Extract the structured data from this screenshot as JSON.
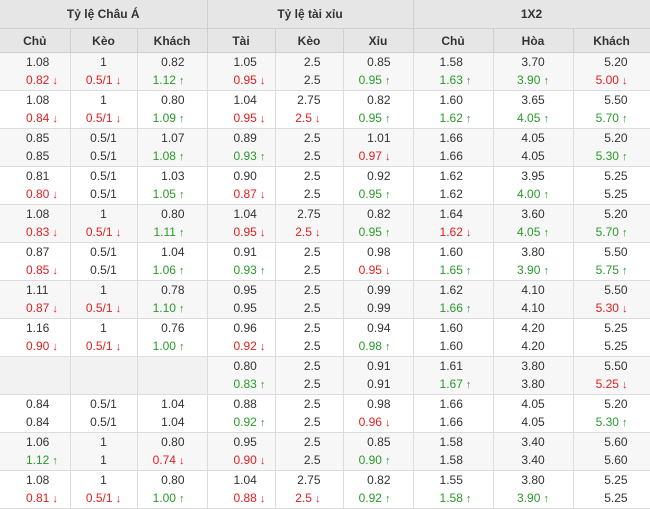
{
  "header": {
    "group_asian": "Tỷ lệ Châu Á",
    "group_ou": "Tỷ lệ tài xỉu",
    "group_1x2": "1X2",
    "cols": [
      "Chủ",
      "Kèo",
      "Khách",
      "Tài",
      "Kèo",
      "Xỉu",
      "Chủ",
      "Hòa",
      "Khách"
    ]
  },
  "colors": {
    "down": "#e02020",
    "up": "#2a9a2a",
    "header_bg": "#e6e6e6"
  },
  "rows": [
    [
      [
        "1.08",
        "0.82:d"
      ],
      [
        "1",
        "0.5/1:d"
      ],
      [
        "0.82",
        "1.12:u"
      ],
      [
        "1.05",
        "0.95:d"
      ],
      [
        "2.5",
        "2.5"
      ],
      [
        "0.85",
        "0.95:u"
      ],
      [
        "1.58",
        "1.63:u"
      ],
      [
        "3.70",
        "3.90:u"
      ],
      [
        "5.20",
        "5.00:d"
      ]
    ],
    [
      [
        "1.08",
        "0.84:d"
      ],
      [
        "1",
        "0.5/1:d"
      ],
      [
        "0.80",
        "1.09:u"
      ],
      [
        "1.04",
        "0.95:d"
      ],
      [
        "2.75",
        "2.5:d"
      ],
      [
        "0.82",
        "0.95:u"
      ],
      [
        "1.60",
        "1.62:u"
      ],
      [
        "3.65",
        "4.05:u"
      ],
      [
        "5.50",
        "5.70:u"
      ]
    ],
    [
      [
        "0.85",
        "0.85"
      ],
      [
        "0.5/1",
        "0.5/1"
      ],
      [
        "1.07",
        "1.08:u"
      ],
      [
        "0.89",
        "0.93:u"
      ],
      [
        "2.5",
        "2.5"
      ],
      [
        "1.01",
        "0.97:d"
      ],
      [
        "1.66",
        "1.66"
      ],
      [
        "4.05",
        "4.05"
      ],
      [
        "5.20",
        "5.30:u"
      ]
    ],
    [
      [
        "0.81",
        "0.80:d"
      ],
      [
        "0.5/1",
        "0.5/1"
      ],
      [
        "1.03",
        "1.05:u"
      ],
      [
        "0.90",
        "0.87:d"
      ],
      [
        "2.5",
        "2.5"
      ],
      [
        "0.92",
        "0.95:u"
      ],
      [
        "1.62",
        "1.62"
      ],
      [
        "3.95",
        "4.00:u"
      ],
      [
        "5.25",
        "5.25"
      ]
    ],
    [
      [
        "1.08",
        "0.83:d"
      ],
      [
        "1",
        "0.5/1:d"
      ],
      [
        "0.80",
        "1.11:u"
      ],
      [
        "1.04",
        "0.95:d"
      ],
      [
        "2.75",
        "2.5:d"
      ],
      [
        "0.82",
        "0.95:u"
      ],
      [
        "1.64",
        "1.62:d"
      ],
      [
        "3.60",
        "4.05:u"
      ],
      [
        "5.20",
        "5.70:u"
      ]
    ],
    [
      [
        "0.87",
        "0.85:d"
      ],
      [
        "0.5/1",
        "0.5/1"
      ],
      [
        "1.04",
        "1.06:u"
      ],
      [
        "0.91",
        "0.93:u"
      ],
      [
        "2.5",
        "2.5"
      ],
      [
        "0.98",
        "0.95:d"
      ],
      [
        "1.60",
        "1.65:u"
      ],
      [
        "3.80",
        "3.90:u"
      ],
      [
        "5.50",
        "5.75:u"
      ]
    ],
    [
      [
        "1.11",
        "0.87:d"
      ],
      [
        "1",
        "0.5/1:d"
      ],
      [
        "0.78",
        "1.10:u"
      ],
      [
        "0.95",
        "0.95"
      ],
      [
        "2.5",
        "2.5"
      ],
      [
        "0.99",
        "0.99"
      ],
      [
        "1.62",
        "1.66:u"
      ],
      [
        "4.10",
        "4.10"
      ],
      [
        "5.50",
        "5.30:d"
      ]
    ],
    [
      [
        "1.16",
        "0.90:d"
      ],
      [
        "1",
        "0.5/1:d"
      ],
      [
        "0.76",
        "1.00:u"
      ],
      [
        "0.96",
        "0.92:d"
      ],
      [
        "2.5",
        "2.5"
      ],
      [
        "0.94",
        "0.98:u"
      ],
      [
        "1.60",
        "1.60"
      ],
      [
        "4.20",
        "4.20"
      ],
      [
        "5.25",
        "5.25"
      ]
    ],
    [
      null,
      null,
      null,
      [
        "0.80",
        "0.83:u"
      ],
      [
        "2.5",
        "2.5"
      ],
      [
        "0.91",
        "0.91"
      ],
      [
        "1.61",
        "1.67:u"
      ],
      [
        "3.80",
        "3.80"
      ],
      [
        "5.50",
        "5.25:d"
      ]
    ],
    [
      [
        "0.84",
        "0.84"
      ],
      [
        "0.5/1",
        "0.5/1"
      ],
      [
        "1.04",
        "1.04"
      ],
      [
        "0.88",
        "0.92:u"
      ],
      [
        "2.5",
        "2.5"
      ],
      [
        "0.98",
        "0.96:d"
      ],
      [
        "1.66",
        "1.66"
      ],
      [
        "4.05",
        "4.05"
      ],
      [
        "5.20",
        "5.30:u"
      ]
    ],
    [
      [
        "1.06",
        "1.12:u"
      ],
      [
        "1",
        "1"
      ],
      [
        "0.80",
        "0.74:d"
      ],
      [
        "0.95",
        "0.90:d"
      ],
      [
        "2.5",
        "2.5"
      ],
      [
        "0.85",
        "0.90:u"
      ],
      [
        "1.58",
        "1.58"
      ],
      [
        "3.40",
        "3.40"
      ],
      [
        "5.60",
        "5.60"
      ]
    ],
    [
      [
        "1.08",
        "0.81:d"
      ],
      [
        "1",
        "0.5/1:d"
      ],
      [
        "0.80",
        "1.00:u"
      ],
      [
        "1.04",
        "0.88:d"
      ],
      [
        "2.75",
        "2.5:d"
      ],
      [
        "0.82",
        "0.92:u"
      ],
      [
        "1.55",
        "1.58:u"
      ],
      [
        "3.80",
        "3.90:u"
      ],
      [
        "5.25",
        "5.25"
      ]
    ]
  ]
}
